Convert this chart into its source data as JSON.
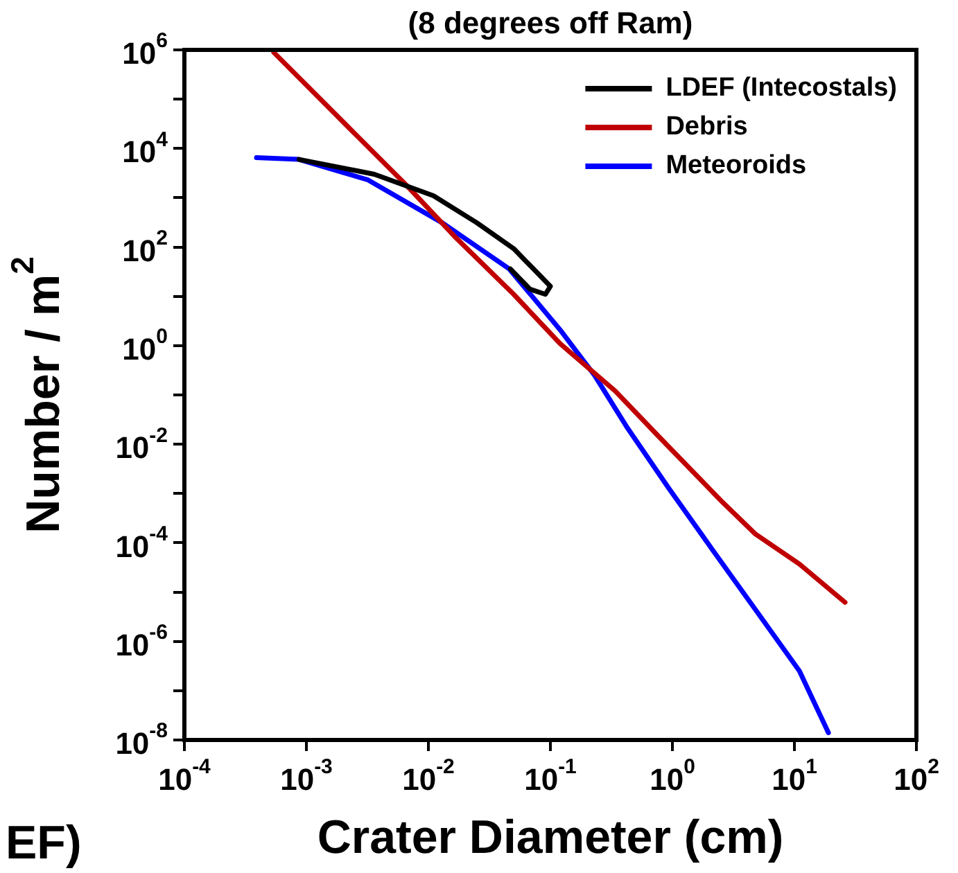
{
  "chart_data": {
    "type": "line",
    "title": "(8 degrees off Ram)",
    "xlabel": "Crater Diameter (cm)",
    "ylabel": "Number / m$^{2}$",
    "log": "xy",
    "grid": false,
    "legend": "top right",
    "marker": "none",
    "line_style": "solid",
    "annotations": [
      "EF)"
    ],
    "xlim": [
      0.0001,
      100
    ],
    "ylim": [
      1e-08,
      1000000
    ],
    "xticks": [
      {
        "value": 0.0001,
        "label": "10$^{-4}$"
      },
      {
        "value": 0.001,
        "label": "10$^{-3}$"
      },
      {
        "value": 0.01,
        "label": "10$^{-2}$"
      },
      {
        "value": 0.1,
        "label": "10$^{-1}$"
      },
      {
        "value": 1,
        "label": "10$^{0}$"
      },
      {
        "value": 10,
        "label": "10$^{1}$"
      },
      {
        "value": 100,
        "label": "10$^{2}$"
      }
    ],
    "yticks": [
      {
        "value": 1e-08,
        "label": "10$^{-8}$"
      },
      {
        "value": 1e-07,
        "label": null
      },
      {
        "value": 1e-06,
        "label": "10$^{-6}$"
      },
      {
        "value": 1e-05,
        "label": null
      },
      {
        "value": 0.0001,
        "label": "10$^{-4}$"
      },
      {
        "value": 0.001,
        "label": null
      },
      {
        "value": 0.01,
        "label": "10$^{-2}$"
      },
      {
        "value": 0.1,
        "label": null
      },
      {
        "value": 1,
        "label": "10$^{0}$"
      },
      {
        "value": 10,
        "label": null
      },
      {
        "value": 100,
        "label": "10$^{2}$"
      },
      {
        "value": 1000,
        "label": null
      },
      {
        "value": 10000,
        "label": "10$^{4}$"
      },
      {
        "value": 100000,
        "label": null
      },
      {
        "value": 1000000,
        "label": "10$^{6}$"
      }
    ],
    "series": [
      {
        "name": "LDEF (Intecostals)",
        "color": "#000000",
        "x": [
          0.00087,
          0.0036,
          0.011,
          0.025,
          0.05,
          0.1,
          0.091,
          0.068,
          0.047
        ],
        "values": [
          6000,
          3000,
          1100,
          310,
          93,
          16,
          11,
          14,
          36
        ]
      },
      {
        "name": "Debris",
        "color": "#c00000",
        "x": [
          0.00054,
          0.0024,
          0.0066,
          0.017,
          0.05,
          0.12,
          0.34,
          0.78,
          2.6,
          4.8,
          11,
          26
        ],
        "values": [
          890000,
          22000,
          1800,
          150,
          11,
          1.1,
          0.12,
          0.014,
          0.00065,
          0.00015,
          3.7e-05,
          6.2e-06
        ]
      },
      {
        "name": "Meteoroids",
        "color": "#0000ff",
        "x": [
          0.00039,
          0.00087,
          0.0032,
          0.013,
          0.046,
          0.12,
          0.23,
          0.42,
          0.93,
          2.1,
          4.8,
          11,
          19
        ],
        "values": [
          6500,
          6000,
          2300,
          310,
          36,
          2.1,
          0.25,
          0.023,
          0.0013,
          7.6e-05,
          4.4e-06,
          2.5e-07,
          1.4e-08
        ]
      }
    ]
  }
}
